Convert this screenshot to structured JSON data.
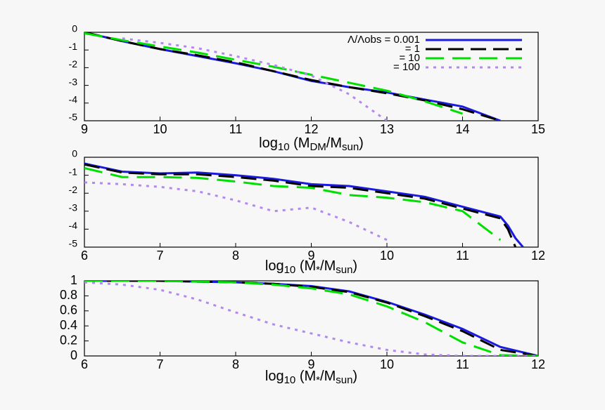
{
  "chart_data": [
    {
      "type": "line",
      "xlabel": [
        "log",
        "10",
        " (M",
        "DM",
        "/M",
        "sun",
        ")"
      ],
      "x": [
        9,
        9.5,
        10,
        10.5,
        11,
        11.5,
        12,
        12.5,
        13,
        13.5,
        14,
        14.5
      ],
      "xlim": [
        9,
        15
      ],
      "xticks": [
        9,
        10,
        11,
        12,
        13,
        14,
        15
      ],
      "ylim": [
        -5,
        0
      ],
      "yticks": [
        0,
        -1,
        -2,
        -3,
        -4,
        -5
      ],
      "series": [
        {
          "name": "Λ/Λobs = 0.001",
          "color": "#1a1ae0",
          "values": [
            0,
            -0.5,
            -0.95,
            -1.35,
            -1.75,
            -2.2,
            -2.75,
            -3.1,
            -3.4,
            -3.8,
            -4.2,
            -5
          ]
        },
        {
          "name": "= 1",
          "color": "#000000",
          "values": [
            0,
            -0.5,
            -0.95,
            -1.3,
            -1.7,
            -2.2,
            -2.7,
            -3.1,
            -3.45,
            -3.85,
            -4.35,
            -5
          ]
        },
        {
          "name": "= 10",
          "color": "#00e000",
          "values": [
            -0.05,
            -0.45,
            -0.8,
            -1.15,
            -1.55,
            -1.95,
            -2.4,
            -2.85,
            -3.3,
            -3.9,
            -4.6,
            null
          ]
        },
        {
          "name": "= 100",
          "color": "#b388f0",
          "values": [
            null,
            -0.35,
            -0.6,
            -0.9,
            -1.35,
            -1.85,
            -2.45,
            -3.5,
            -5,
            null,
            null,
            null
          ]
        }
      ]
    },
    {
      "type": "line",
      "xlabel": [
        "log",
        "10",
        " (M",
        "*",
        "/M",
        "sun",
        ")"
      ],
      "x": [
        6,
        6.5,
        7,
        7.5,
        8,
        8.5,
        9,
        9.5,
        10,
        10.5,
        11,
        11.5,
        11.6,
        11.7,
        11.8
      ],
      "xlim": [
        6,
        12
      ],
      "xticks": [
        6,
        7,
        8,
        9,
        10,
        11,
        12
      ],
      "ylim": [
        -5,
        0
      ],
      "yticks": [
        0,
        -1,
        -2,
        -3,
        -4,
        -5
      ],
      "series": [
        {
          "color": "#1a1ae0",
          "values": [
            -0.35,
            -0.8,
            -0.9,
            -0.85,
            -1.0,
            -1.2,
            -1.5,
            -1.6,
            -1.9,
            -2.2,
            -2.75,
            -3.3,
            -3.8,
            -4.5,
            -5
          ]
        },
        {
          "color": "#000000",
          "values": [
            -0.4,
            -0.85,
            -0.95,
            -0.95,
            -1.1,
            -1.3,
            -1.6,
            -1.7,
            -2.0,
            -2.3,
            -2.85,
            -3.4,
            -4.0,
            -5,
            null
          ]
        },
        {
          "color": "#00e000",
          "values": [
            -0.6,
            -1.1,
            -1.1,
            -1.15,
            -1.35,
            -1.6,
            -1.7,
            -2.1,
            -2.25,
            -2.5,
            -3.0,
            -4.6,
            null,
            null,
            null
          ]
        },
        {
          "color": "#b388f0",
          "values": [
            -1.4,
            -1.5,
            -1.65,
            -1.9,
            -2.4,
            -3.0,
            -2.8,
            -3.6,
            -4.6,
            null,
            null,
            null,
            null,
            null,
            null
          ]
        }
      ]
    },
    {
      "type": "line",
      "xlabel": [
        "log",
        "10",
        " (M",
        "*",
        "/M",
        "sun",
        ")"
      ],
      "x": [
        6,
        6.5,
        7,
        7.5,
        8,
        8.5,
        9,
        9.5,
        10,
        10.5,
        11,
        11.5,
        12
      ],
      "xlim": [
        6,
        12
      ],
      "xticks": [
        6,
        7,
        8,
        9,
        10,
        11,
        12
      ],
      "ylim": [
        0,
        1
      ],
      "yticks": [
        0,
        0.2,
        0.4,
        0.6,
        0.8,
        1
      ],
      "series": [
        {
          "color": "#1a1ae0",
          "values": [
            1,
            1,
            1,
            0.99,
            0.98,
            0.96,
            0.93,
            0.86,
            0.72,
            0.55,
            0.36,
            0.12,
            0
          ]
        },
        {
          "color": "#000000",
          "values": [
            1,
            1,
            1,
            0.99,
            0.98,
            0.96,
            0.92,
            0.85,
            0.71,
            0.53,
            0.33,
            0.08,
            0
          ]
        },
        {
          "color": "#00e000",
          "values": [
            1,
            1,
            1,
            0.99,
            0.98,
            0.95,
            0.9,
            0.82,
            0.66,
            0.45,
            0.18,
            0.01,
            0
          ]
        },
        {
          "color": "#b388f0",
          "values": [
            0.98,
            0.95,
            0.88,
            0.75,
            0.58,
            0.42,
            0.3,
            0.18,
            0.08,
            0.02,
            0,
            0,
            0
          ]
        }
      ]
    }
  ]
}
